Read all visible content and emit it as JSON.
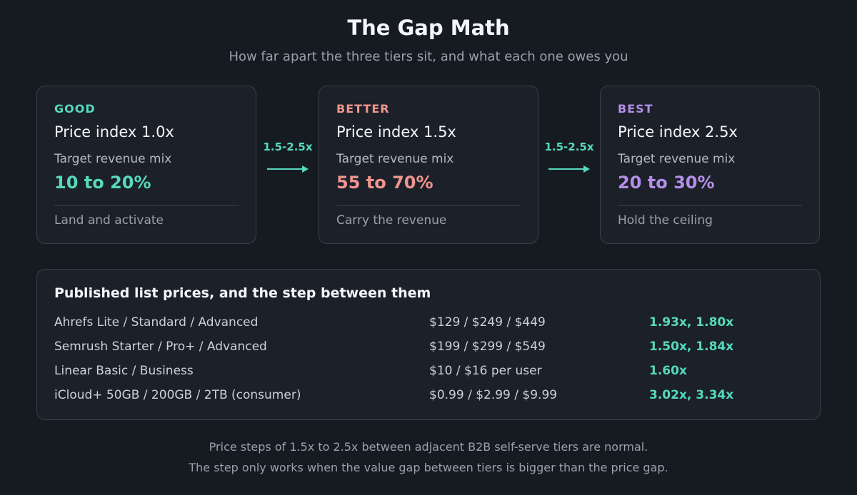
{
  "title": "The Gap Math",
  "subtitle": "How far apart the three tiers sit, and what each one owes you",
  "tiers": [
    {
      "name": "GOOD",
      "index": "Price index 1.0x",
      "mix_label": "Target revenue mix",
      "mix_value": "10 to 20%",
      "role": "Land and activate",
      "color": "#56d9bd"
    },
    {
      "name": "BETTER",
      "index": "Price index 1.5x",
      "mix_label": "Target revenue mix",
      "mix_value": "55 to 70%",
      "role": "Carry the revenue",
      "color": "#f0958f"
    },
    {
      "name": "BEST",
      "index": "Price index 2.5x",
      "mix_label": "Target revenue mix",
      "mix_value": "20 to 30%",
      "role": "Hold the ceiling",
      "color": "#b48ee8"
    }
  ],
  "steps": [
    {
      "label": "1.5-2.5x"
    },
    {
      "label": "1.5-2.5x"
    }
  ],
  "price_table": {
    "heading": "Published list prices, and the step between them",
    "rows": [
      {
        "product": "Ahrefs Lite / Standard / Advanced",
        "prices": "$129 / $249 / $449",
        "steps": "1.93x, 1.80x"
      },
      {
        "product": "Semrush Starter / Pro+ / Advanced",
        "prices": "$199 / $299 / $549",
        "steps": "1.50x, 1.84x"
      },
      {
        "product": "Linear Basic / Business",
        "prices": "$10 / $16 per user",
        "steps": "1.60x"
      },
      {
        "product": "iCloud+ 50GB / 200GB / 2TB (consumer)",
        "prices": "$0.99 / $2.99 / $9.99",
        "steps": "3.02x, 3.34x"
      }
    ]
  },
  "footnotes": [
    "Price steps of 1.5x to 2.5x between adjacent B2B self-serve tiers are normal.",
    "The step only works when the value gap between tiers is bigger than the price gap."
  ],
  "colors": {
    "background": "#161b22",
    "card": "#1c2129",
    "border": "#3a3f47",
    "accent_teal": "#56d9bd",
    "accent_coral": "#f0958f",
    "accent_purple": "#b48ee8"
  },
  "icons": {
    "step_arrow": "arrow-right-icon"
  }
}
